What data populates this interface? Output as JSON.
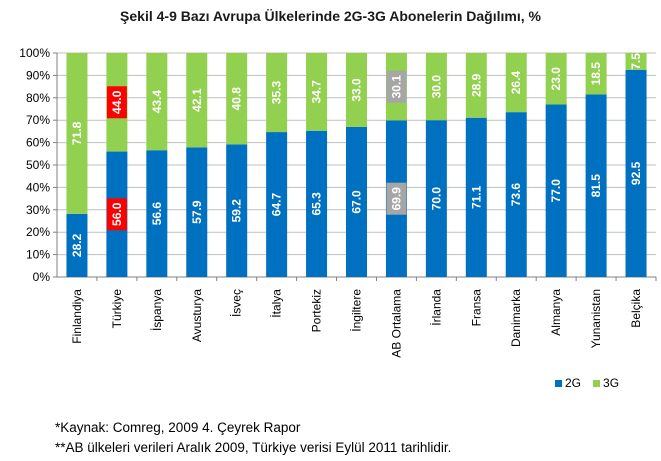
{
  "title": "Şekil 4-9 Bazı Avrupa Ülkelerinde 2G-3G Abonelerin Dağılımı, %",
  "notes": [
    "*Kaynak: Comreg, 2009 4. Çeyrek Rapor",
    "**AB ülkeleri verileri Aralık 2009, Türkiye verisi Eylül 2011 tarihlidir."
  ],
  "chart_data": {
    "type": "bar",
    "stacked": true,
    "categories": [
      "Finlandiya",
      "Türkiye",
      "İspanya",
      "Avusturya",
      "İsveç",
      "İtalya",
      "Portekiz",
      "İngiltere",
      "AB Ortalama",
      "İrlanda",
      "Fransa",
      "Danimarka",
      "Almanya",
      "Yunanistan",
      "Belçika"
    ],
    "series": [
      {
        "name": "2G",
        "color": "#0070c0",
        "values": [
          28.2,
          56.0,
          56.6,
          57.9,
          59.2,
          64.7,
          65.3,
          67.0,
          69.9,
          70.0,
          71.1,
          73.6,
          77.0,
          81.5,
          92.5
        ]
      },
      {
        "name": "3G",
        "color": "#92d050",
        "values": [
          71.8,
          44.0,
          43.4,
          42.1,
          40.8,
          35.3,
          34.7,
          33.0,
          30.1,
          30.0,
          28.9,
          26.4,
          23.0,
          18.5,
          7.5
        ]
      }
    ],
    "highlights": {
      "Türkiye": "#ff0000",
      "AB Ortalama": "#a6a6a6"
    },
    "ylim": [
      0,
      100
    ],
    "yticks": [
      "0%",
      "10%",
      "20%",
      "30%",
      "40%",
      "50%",
      "60%",
      "70%",
      "80%",
      "90%",
      "100%"
    ],
    "grid": true,
    "legend_position": "bottom-right"
  }
}
